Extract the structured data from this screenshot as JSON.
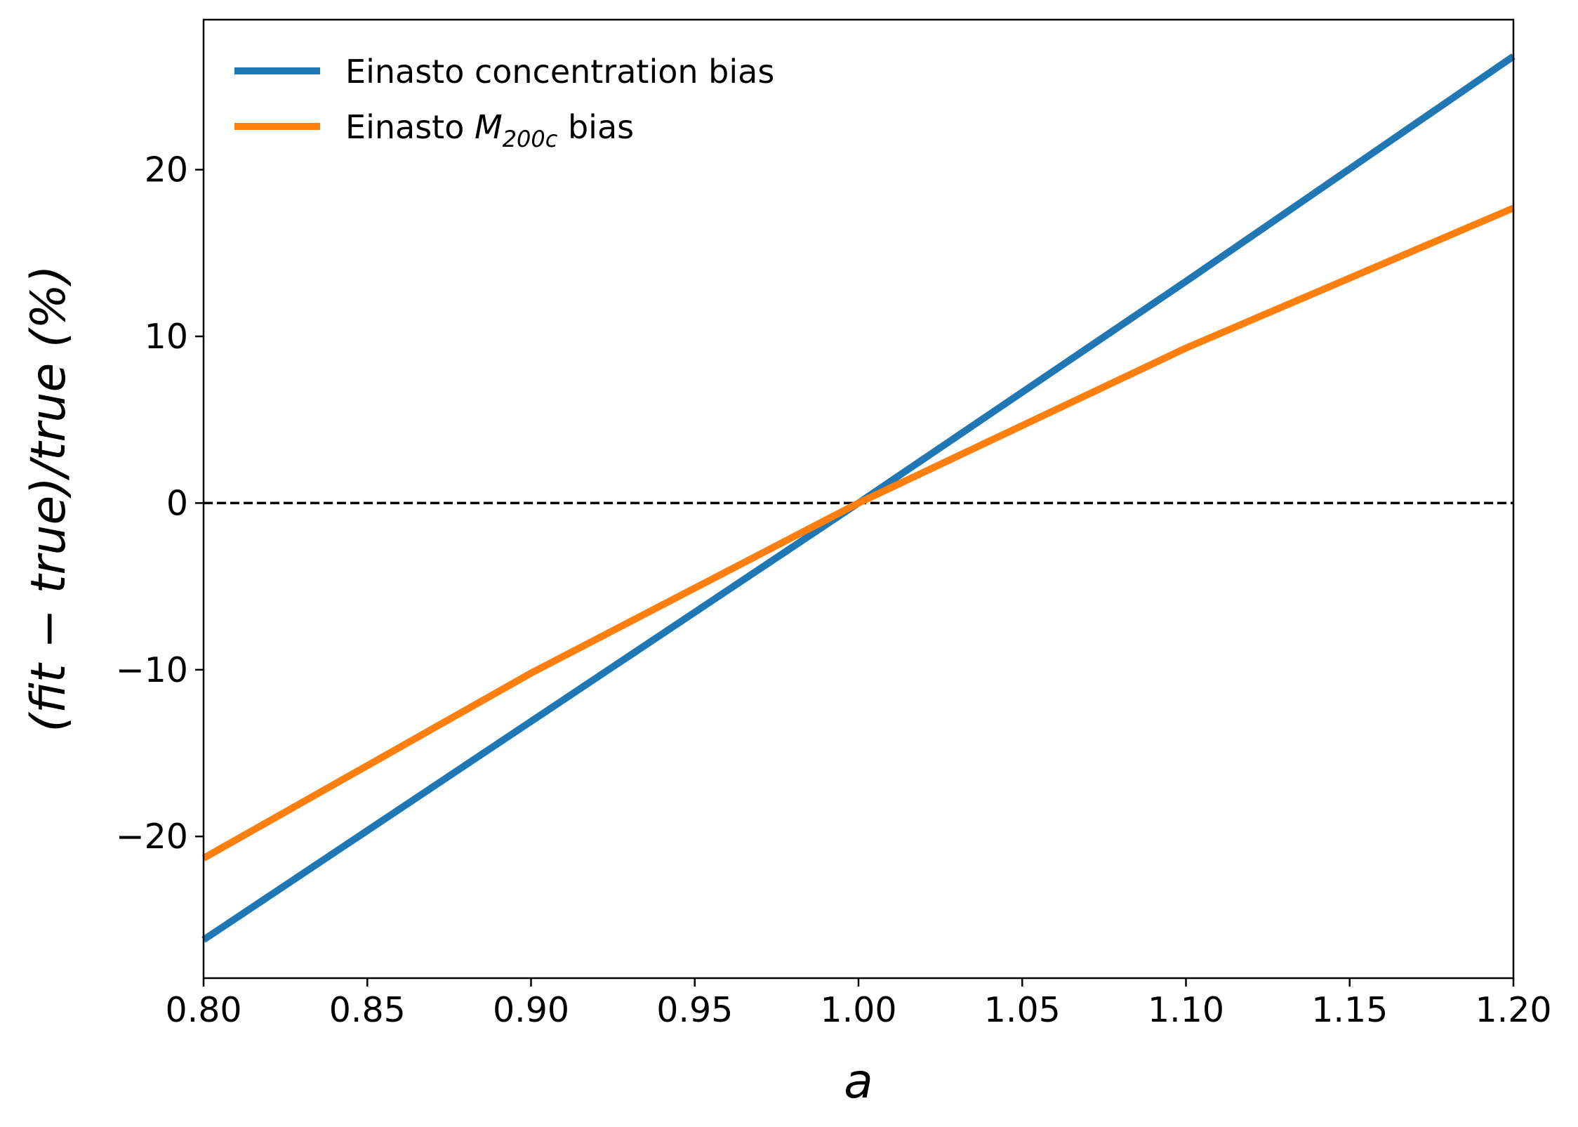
{
  "chart_data": {
    "type": "line",
    "xlabel": "a",
    "ylabel": "(fit − true)/true (%)",
    "xlim": [
      0.8,
      1.2
    ],
    "ylim": [
      -28.5,
      29
    ],
    "xticks": [
      "0.80",
      "0.85",
      "0.90",
      "0.95",
      "1.00",
      "1.05",
      "1.10",
      "1.15",
      "1.20"
    ],
    "yticks": [
      "−20",
      "−10",
      "0",
      "10",
      "20"
    ],
    "legend_position": "top-left",
    "grid": false,
    "reference_line": {
      "y": 0,
      "style": "dashed",
      "color": "#000000"
    },
    "series": [
      {
        "name": "Einasto concentration bias",
        "color": "#1f77b4",
        "x": [
          0.8,
          0.9,
          1.0,
          1.1,
          1.2
        ],
        "y": [
          -26.2,
          -13.1,
          0.0,
          13.3,
          26.8
        ]
      },
      {
        "name": "Einasto M200c bias",
        "name_parts": {
          "prefix": "Einasto ",
          "symbol": "M",
          "subscript": "200c",
          "suffix": " bias"
        },
        "color": "#ff7f0e",
        "x": [
          0.8,
          0.9,
          1.0,
          1.1,
          1.2
        ],
        "y": [
          -21.3,
          -10.2,
          0.0,
          9.3,
          17.7
        ]
      }
    ]
  }
}
